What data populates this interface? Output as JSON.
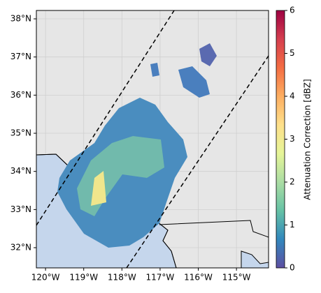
{
  "chart_data": {
    "type": "map",
    "xlim": [
      -120.24,
      -114.16
    ],
    "ylim": [
      31.47,
      38.22
    ],
    "xticks": [
      {
        "value": -120,
        "label": "120°W"
      },
      {
        "value": -119,
        "label": "119°W"
      },
      {
        "value": -118,
        "label": "118°W"
      },
      {
        "value": -117,
        "label": "117°W"
      },
      {
        "value": -116,
        "label": "116°W"
      },
      {
        "value": -115,
        "label": "115°W"
      }
    ],
    "yticks": [
      {
        "value": 32,
        "label": "32°N"
      },
      {
        "value": 33,
        "label": "33°N"
      },
      {
        "value": 34,
        "label": "34°N"
      },
      {
        "value": 35,
        "label": "35°N"
      },
      {
        "value": 36,
        "label": "36°N"
      },
      {
        "value": 37,
        "label": "37°N"
      },
      {
        "value": 38,
        "label": "38°N"
      }
    ],
    "grid": true,
    "colorbar": {
      "label": "Attenuation Correction [dBZ]",
      "lim": [
        0,
        6
      ],
      "ticks": [
        0,
        1,
        2,
        3,
        4,
        5,
        6
      ],
      "colors": [
        "#5e4fa2",
        "#3288bd",
        "#66c2a5",
        "#abdda4",
        "#e6f598",
        "#fee08b",
        "#fdae61",
        "#f46d43",
        "#d53e4f",
        "#9e0142"
      ]
    }
  }
}
